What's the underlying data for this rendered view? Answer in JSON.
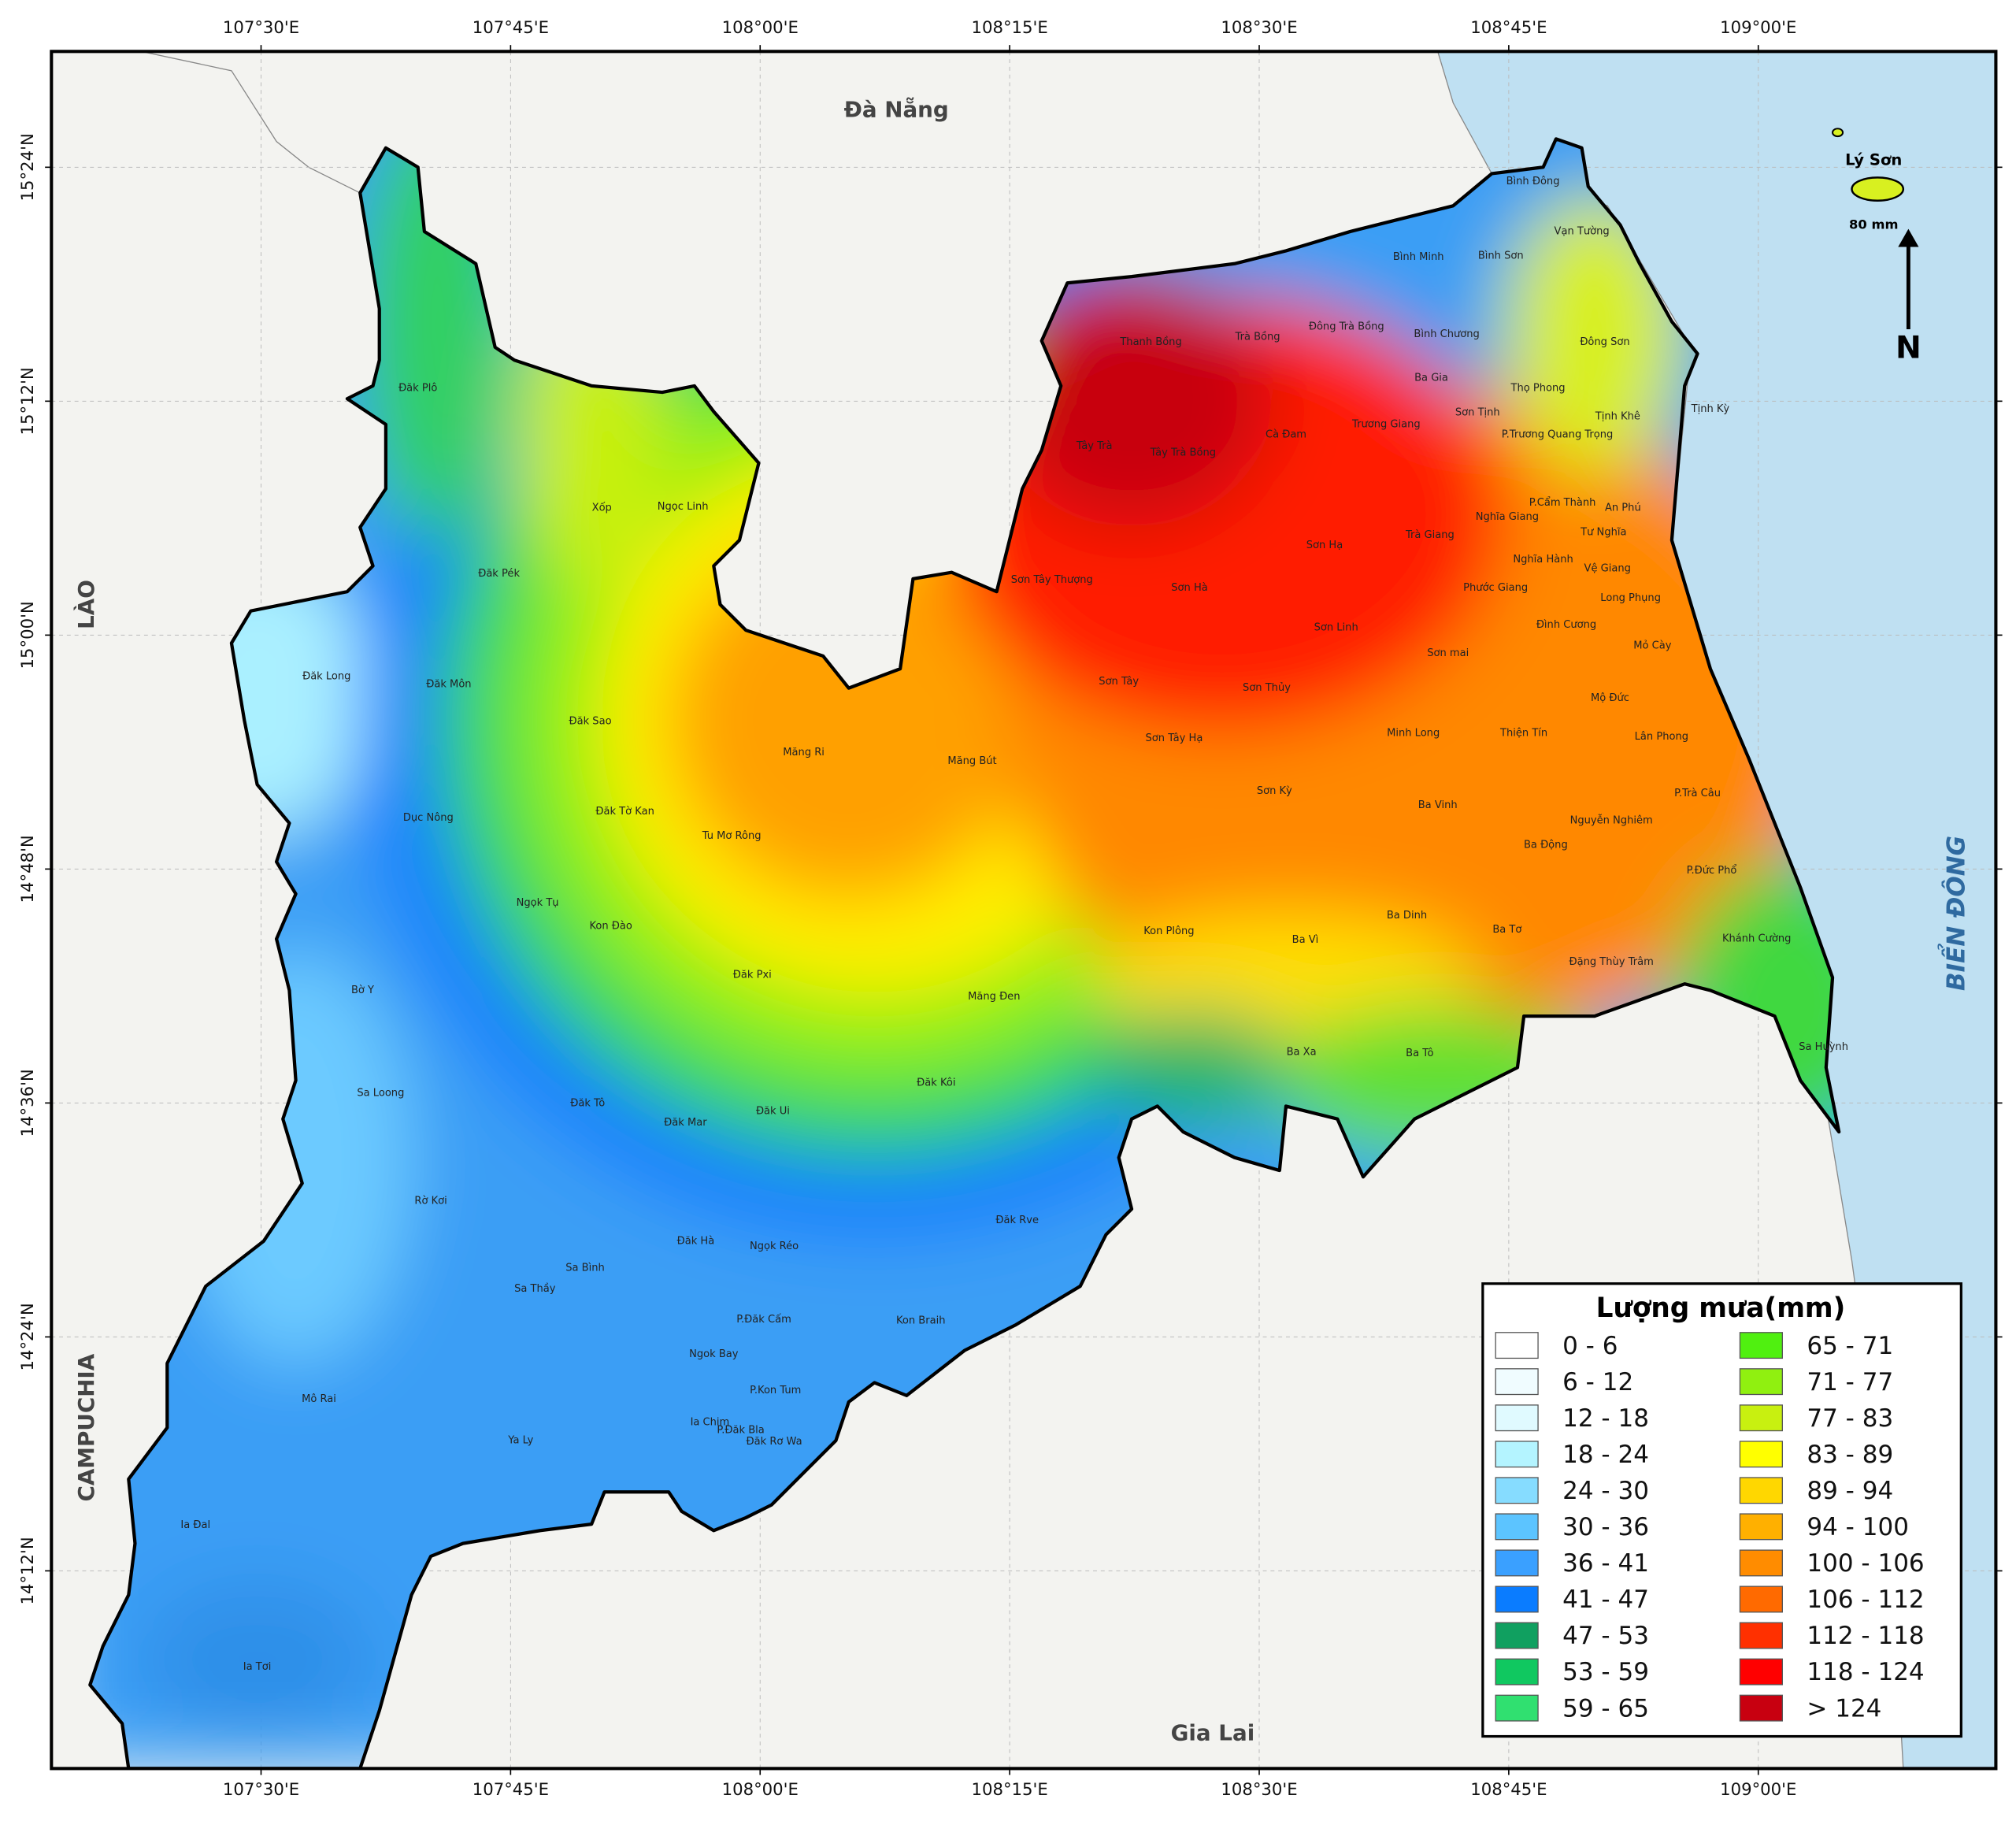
{
  "map": {
    "xlim": [
      107.29,
      109.238
    ],
    "ylim": [
      14.031,
      15.499
    ],
    "xticks": [
      {
        "value": 107.5,
        "label": "107°30'E"
      },
      {
        "value": 107.75,
        "label": "107°45'E"
      },
      {
        "value": 108.0,
        "label": "108°00'E"
      },
      {
        "value": 108.25,
        "label": "108°15'E"
      },
      {
        "value": 108.5,
        "label": "108°30'E"
      },
      {
        "value": 108.75,
        "label": "108°45'E"
      },
      {
        "value": 109.0,
        "label": "109°00'E"
      }
    ],
    "yticks": [
      {
        "value": 15.4,
        "label": "15°24'N"
      },
      {
        "value": 15.2,
        "label": "15°12'N"
      },
      {
        "value": 15.0,
        "label": "15°00'N"
      },
      {
        "value": 14.8,
        "label": "14°48'N"
      },
      {
        "value": 14.6,
        "label": "14°36'N"
      },
      {
        "value": 14.4,
        "label": "14°24'N"
      },
      {
        "value": 14.2,
        "label": "14°12'N"
      }
    ],
    "neighbors": {
      "north": "Đà Nẵng",
      "south": "Gia Lai",
      "west_north": "LÀO",
      "west_south": "CAMPUCHIA",
      "sea": "BIỂN ĐÔNG"
    },
    "island": {
      "name": "Lý Sơn",
      "rainfall": "80 mm"
    },
    "north_arrow": "N",
    "communes": [
      "Bình Đông",
      "Vạn Tường",
      "Bình Minh",
      "Bình Sơn",
      "Đông Sơn",
      "Thanh Bồng",
      "Trà Bồng",
      "Đông Trà Bồng",
      "Bình Chương",
      "Ba Gia",
      "Thọ Phong",
      "Đăk Plô",
      "Sơn Tịnh",
      "Tịnh Khê",
      "Tịnh Kỳ",
      "Trương Giang",
      "Cà Đam",
      "P.Trương Quang Trọng",
      "Tây Trà",
      "Tây Trà Bồng",
      "Xốp",
      "Ngọc Linh",
      "P.Cẩm Thành",
      "An Phú",
      "Nghĩa Giang",
      "Tư Nghĩa",
      "Trà Giang",
      "Sơn Hạ",
      "Nghĩa Hành",
      "Vệ Giang",
      "Đăk Pék",
      "Sơn Tây Thượng",
      "Sơn Hà",
      "Phước Giang",
      "Long Phụng",
      "Đình Cương",
      "Sơn Linh",
      "Mỏ Cày",
      "Đăk Long",
      "Sơn mai",
      "Đăk Môn",
      "Sơn Tây",
      "Sơn Thủy",
      "Mộ Đức",
      "Đăk Sao",
      "Minh Long",
      "Thiện Tín",
      "Sơn Tây Hạ",
      "Lân Phong",
      "Măng Ri",
      "Măng Bút",
      "Sơn Kỳ",
      "P.Trà Câu",
      "Đăk Tờ Kan",
      "Ba Vinh",
      "Dục Nông",
      "Nguyễn Nghiêm",
      "Tu Mơ Rông",
      "Ba Động",
      "P.Đức Phổ",
      "Ngọk Tụ",
      "Ba Dinh",
      "Kon Đào",
      "Kon Plông",
      "Ba Tơ",
      "Ba Vì",
      "Khánh Cường",
      "Đặng Thùy Trâm",
      "Đăk Pxi",
      "Bờ Y",
      "Măng Đen",
      "Sa Huỳnh",
      "Ba Xa",
      "Ba Tô",
      "Đăk Kôi",
      "Sa Loong",
      "Đăk Tô",
      "Đăk Ui",
      "Đăk Mar",
      "Rờ Kơi",
      "Đăk Rve",
      "Đăk Hà",
      "Ngọk Réo",
      "Sa Bình",
      "Sa Thầy",
      "P.Đăk Cấm",
      "Kon Braih",
      "Ngok Bay",
      "P.Kon Tum",
      "Mô Rai",
      "Ia Chim",
      "P.Đăk Bla",
      "Đăk Rơ Wa",
      "Ya Ly",
      "Ia Đal",
      "Ia Tơi"
    ],
    "legend": {
      "title": "Lượng mưa(mm)",
      "items": [
        {
          "label": "0 - 6",
          "color": "#ffffff"
        },
        {
          "label": "6 - 12",
          "color": "#f0fcff"
        },
        {
          "label": "12 - 18",
          "color": "#e0faff"
        },
        {
          "label": "18 - 24",
          "color": "#b4f4ff"
        },
        {
          "label": "24 - 30",
          "color": "#86dcff"
        },
        {
          "label": "30 - 36",
          "color": "#5cc4ff"
        },
        {
          "label": "36 - 41",
          "color": "#3aa0ff"
        },
        {
          "label": "41 - 47",
          "color": "#0a7cff"
        },
        {
          "label": "47 - 53",
          "color": "#10a060"
        },
        {
          "label": "53 - 59",
          "color": "#10c860"
        },
        {
          "label": "59 - 65",
          "color": "#30e070"
        },
        {
          "label": "65 - 71",
          "color": "#50f010"
        },
        {
          "label": "71 - 77",
          "color": "#90f010"
        },
        {
          "label": "77 - 83",
          "color": "#c8f010"
        },
        {
          "label": "83 - 89",
          "color": "#ffff00"
        },
        {
          "label": "89 - 94",
          "color": "#ffd700"
        },
        {
          "label": "94 - 100",
          "color": "#ffb000"
        },
        {
          "label": "100 - 106",
          "color": "#ff8c00"
        },
        {
          "label": "106 - 112",
          "color": "#ff6a00"
        },
        {
          "label": "112 - 118",
          "color": "#ff3000"
        },
        {
          "label": "118 - 124",
          "color": "#ff0000"
        },
        {
          "label": "> 124",
          "color": "#c80010"
        }
      ]
    }
  }
}
